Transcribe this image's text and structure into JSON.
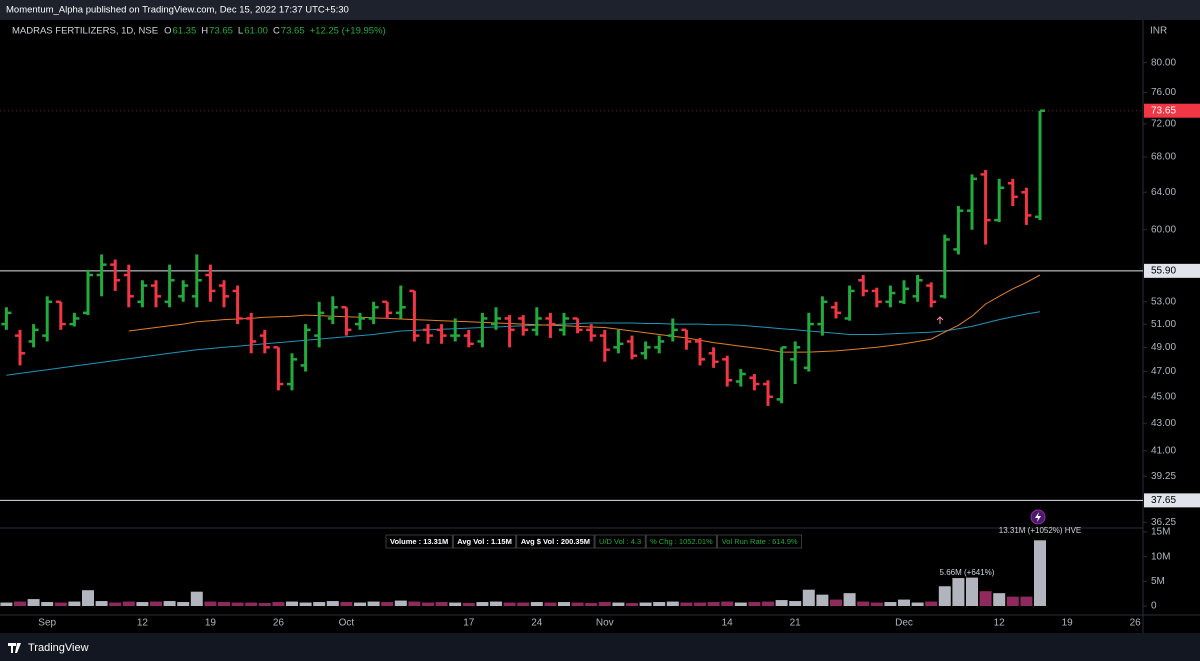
{
  "header": {
    "published": "Momentum_Alpha published on TradingView.com, Dec 15, 2022 17:37 UTC+5:30"
  },
  "footer": {
    "brand": "TradingView"
  },
  "chart_data": {
    "type": "ohlc",
    "symbol": "MADRAS FERTILIZERS, 1D, NSE",
    "ohlc_readout": [
      "O",
      "61.35",
      "H",
      "73.65",
      "L",
      "61.00",
      "C",
      "73.65",
      "+12.25 (+19.95%)"
    ],
    "currency": "INR",
    "yscale": "log",
    "up_color": "#22ab3c",
    "down_color": "#f23645",
    "ylim": [
      35.9,
      86.1
    ],
    "yticks": [
      {
        "value": 80,
        "label": "80.00"
      },
      {
        "value": 76,
        "label": "76.00"
      },
      {
        "value": 72,
        "label": "72.00"
      },
      {
        "value": 68,
        "label": "68.00"
      },
      {
        "value": 64,
        "label": "64.00"
      },
      {
        "value": 60,
        "label": "60.00"
      },
      {
        "value": 53,
        "label": "53.00"
      },
      {
        "value": 51,
        "label": "51.00"
      },
      {
        "value": 49,
        "label": "49.00"
      },
      {
        "value": 47,
        "label": "47.00"
      },
      {
        "value": 45,
        "label": "45.00"
      },
      {
        "value": 43,
        "label": "43.00"
      },
      {
        "value": 41,
        "label": "41.00"
      },
      {
        "value": 39.25,
        "label": "39.25"
      },
      {
        "value": 36.25,
        "label": "36.25"
      }
    ],
    "hlines": [
      {
        "value": 55.9,
        "label": "55.90"
      },
      {
        "value": 37.65,
        "label": "37.65"
      }
    ],
    "categories": [
      null,
      null,
      null,
      "Sep",
      null,
      null,
      null,
      null,
      null,
      null,
      "12",
      null,
      null,
      null,
      null,
      "19",
      null,
      null,
      null,
      null,
      "26",
      null,
      null,
      null,
      null,
      "Oct",
      null,
      null,
      null,
      null,
      null,
      null,
      null,
      null,
      "17",
      null,
      null,
      null,
      null,
      "24",
      null,
      null,
      null,
      null,
      "Nov",
      null,
      null,
      null,
      null,
      null,
      null,
      null,
      null,
      "14",
      null,
      null,
      null,
      null,
      "21",
      null,
      null,
      null,
      null,
      null,
      null,
      null,
      "Dec",
      null,
      null,
      null,
      null,
      null,
      null,
      "12",
      null,
      null,
      null,
      null,
      "19",
      null,
      null,
      null,
      null,
      "26"
    ],
    "open": [
      51,
      50,
      49.5,
      50,
      53,
      51,
      52,
      55.5,
      56.5,
      55.5,
      53,
      54.5,
      53,
      53.5,
      53.5,
      55.5,
      54.5,
      54,
      51.5,
      50,
      49,
      46,
      47.5,
      50,
      51.5,
      52.5,
      51,
      51.5,
      53,
      52,
      54,
      50.5,
      50.5,
      50,
      50,
      49.5,
      51,
      51.5,
      51.5,
      50.5,
      51.5,
      50.5,
      51.5,
      50.5,
      50,
      49,
      49.5,
      48.5,
      49,
      50,
      50.5,
      49.5,
      48.5,
      48,
      46.2,
      46.5,
      46,
      44.8,
      48,
      47.3,
      51,
      52.5,
      51.5,
      55,
      54,
      53,
      53,
      53.5,
      54.5,
      53.5,
      58,
      62,
      66,
      61,
      65,
      64,
      61.35,
      null,
      null,
      null,
      null,
      null,
      null,
      null
    ],
    "high": [
      52.5,
      50.5,
      51,
      53.5,
      53,
      52,
      56,
      57.5,
      57,
      56.5,
      55,
      55,
      56.5,
      55,
      57.5,
      56.5,
      55,
      54.5,
      52,
      50.5,
      49,
      48.5,
      51,
      53,
      53.5,
      52.5,
      52,
      53,
      53,
      54.5,
      54,
      51,
      51,
      51.5,
      50.5,
      52,
      52.5,
      51.8,
      51.8,
      52.5,
      52,
      52,
      51.5,
      51,
      50.5,
      50.5,
      50,
      49.5,
      50,
      51.5,
      50.5,
      49.8,
      49,
      48.3,
      47.2,
      46.8,
      46.3,
      49,
      49.5,
      52,
      53.5,
      53,
      54.5,
      55.5,
      54.3,
      54.5,
      55,
      55.5,
      54.8,
      59.5,
      62.5,
      66,
      66.5,
      65.5,
      65.5,
      64.5,
      73.65,
      null,
      null,
      null,
      null,
      null,
      null,
      null
    ],
    "low": [
      50.5,
      47.5,
      49,
      49.5,
      50.5,
      50.8,
      51.8,
      53.5,
      54,
      52.5,
      52.5,
      52.5,
      52.5,
      53,
      52.5,
      53,
      52.5,
      51,
      48.5,
      48.5,
      45.5,
      45.5,
      47,
      49,
      51,
      50,
      50.5,
      51,
      51.5,
      51.5,
      49.5,
      49.3,
      49.3,
      49.5,
      49,
      49,
      50.5,
      49,
      50,
      50,
      49.8,
      50,
      50.2,
      49.5,
      47.8,
      48.5,
      48,
      48,
      48.5,
      49.5,
      48.8,
      47.5,
      47.3,
      45.8,
      45.8,
      45.5,
      44.3,
      44.5,
      46,
      47,
      50,
      51.5,
      51.3,
      53.5,
      52.5,
      52.5,
      52.8,
      53,
      52.5,
      53.3,
      57.5,
      60,
      58.5,
      60.8,
      62.5,
      60.5,
      61,
      null,
      null,
      null,
      null,
      null,
      null,
      null
    ],
    "close": [
      52,
      48.5,
      50.5,
      53,
      51,
      51.5,
      55.5,
      56.5,
      55,
      53.5,
      54.5,
      53.5,
      55,
      54.5,
      55,
      54,
      53.5,
      51.5,
      49.5,
      49,
      46,
      48,
      50.5,
      52,
      52.5,
      50.5,
      51.5,
      52.5,
      52,
      52.5,
      50,
      50,
      50,
      50,
      49.3,
      51.5,
      51.5,
      50.5,
      50.5,
      51.5,
      51,
      51.5,
      50.5,
      50,
      48.8,
      49.3,
      48.3,
      49,
      49.5,
      50.5,
      49.5,
      48,
      47.8,
      46.3,
      46.8,
      46,
      45,
      49,
      49,
      51,
      53,
      52,
      54,
      54,
      53,
      53.8,
      54.2,
      55,
      53,
      59,
      62,
      65.5,
      61,
      64.5,
      63.5,
      61.5,
      73.65,
      null,
      null,
      null,
      null,
      null,
      null,
      null
    ],
    "moving_averages": [
      {
        "color": "#2196b8",
        "values": [
          46.7,
          46.85,
          47.0,
          47.15,
          47.3,
          47.45,
          47.6,
          47.75,
          47.9,
          48.05,
          48.2,
          48.35,
          48.5,
          48.65,
          48.8,
          48.9,
          49.0,
          49.1,
          49.2,
          49.3,
          49.4,
          49.5,
          49.6,
          49.7,
          49.8,
          49.9,
          50.0,
          50.1,
          50.25,
          50.4,
          50.45,
          50.5,
          50.55,
          50.6,
          50.65,
          50.7,
          50.75,
          50.8,
          50.85,
          50.9,
          50.95,
          51.0,
          51.05,
          51.1,
          51.1,
          51.1,
          51.1,
          51.05,
          51.05,
          51.0,
          51.0,
          51.0,
          50.95,
          50.95,
          50.9,
          50.8,
          50.7,
          50.6,
          50.5,
          50.4,
          50.3,
          50.2,
          50.1,
          50.1,
          50.1,
          50.15,
          50.2,
          50.25,
          50.3,
          50.4,
          50.6,
          50.8,
          51.1,
          51.4,
          51.65,
          51.9,
          52.1,
          null,
          null,
          null,
          null,
          null,
          null,
          null
        ]
      },
      {
        "color": "#e0802a",
        "values": [
          null,
          null,
          null,
          null,
          null,
          null,
          null,
          null,
          null,
          50.4,
          50.55,
          50.7,
          50.85,
          51.0,
          51.2,
          51.3,
          51.4,
          51.45,
          51.5,
          51.6,
          51.65,
          51.7,
          51.8,
          51.75,
          51.7,
          51.65,
          51.6,
          51.55,
          51.5,
          51.45,
          51.4,
          51.35,
          51.3,
          51.25,
          51.2,
          51.15,
          51.1,
          51.05,
          51.0,
          50.95,
          50.9,
          50.85,
          50.8,
          50.75,
          50.7,
          50.55,
          50.4,
          50.25,
          50.1,
          49.95,
          49.8,
          49.6,
          49.4,
          49.25,
          49.1,
          48.95,
          48.8,
          48.6,
          48.6,
          48.6,
          48.65,
          48.7,
          48.8,
          48.9,
          49.0,
          49.15,
          49.3,
          49.5,
          49.7,
          50.3,
          50.9,
          51.7,
          52.8,
          53.5,
          54.2,
          54.8,
          55.5,
          null,
          null,
          null,
          null,
          null,
          null,
          null
        ]
      }
    ],
    "volume": [
      700000,
      900000,
      1400000,
      800000,
      700000,
      900000,
      3200000,
      1000000,
      700000,
      900000,
      800000,
      900000,
      1000000,
      800000,
      2900000,
      900000,
      800000,
      700000,
      700000,
      600000,
      800000,
      900000,
      700000,
      800000,
      1000000,
      800000,
      700000,
      900000,
      800000,
      1100000,
      900000,
      700000,
      800000,
      700000,
      600000,
      800000,
      900000,
      700000,
      700000,
      800000,
      700000,
      800000,
      700000,
      600000,
      800000,
      700000,
      600000,
      700000,
      800000,
      900000,
      700000,
      700000,
      800000,
      900000,
      700000,
      800000,
      900000,
      1200000,
      1000000,
      3300000,
      2300000,
      1300000,
      2600000,
      900000,
      700000,
      800000,
      1300000,
      700000,
      900000,
      4000000,
      5660000,
      5750000,
      3000000,
      2600000,
      1900000,
      1900000,
      13310000,
      null,
      null,
      null,
      null,
      null,
      null,
      null
    ],
    "volume_up_color": "#b2b5be",
    "volume_down_color": "#8e2a5e",
    "volume_ylim": [
      0,
      15800000
    ],
    "volume_yticks": [
      0,
      {
        "value": 5000000,
        "label": "5M"
      },
      {
        "value": 10000000,
        "label": "10M"
      },
      {
        "value": 15000000,
        "label": "15M"
      }
    ],
    "volume_annotations": [
      "5.66M (+641%)",
      "13.31M (+1052%) HVE"
    ],
    "stats": [
      "Volume : 13.31M",
      "Avg Vol : 1.15M",
      "Avg $ Vol : 200.35M",
      "U/D Vol : 4.3",
      "% Chg : 1052.01%",
      "Vol Run Rate : 614.9%"
    ]
  }
}
